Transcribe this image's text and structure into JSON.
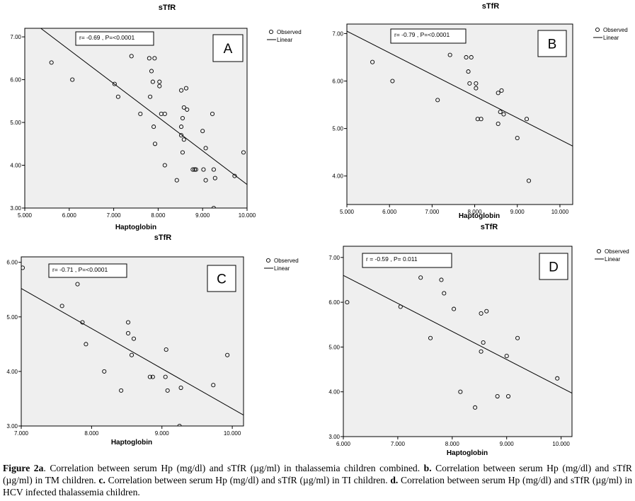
{
  "chart_data": [
    {
      "type": "scatter",
      "title": "sTfR",
      "xlabel": "Haptoglobin",
      "ylabel": "",
      "xlim": [
        5,
        10
      ],
      "ylim": [
        3,
        7.2
      ],
      "xticks": [
        "5.000",
        "6.000",
        "7.000",
        "8.000",
        "9.000",
        "10.000"
      ],
      "yticks": [
        "3.00",
        "4.00",
        "5.00",
        "6.00",
        "7.00"
      ],
      "legend": {
        "observed": "Observed",
        "linear": "Linear",
        "placement": "top-right"
      },
      "stats": "r= -0.69 ,  P=<0.0001",
      "panel_letter": "A",
      "fit_line": {
        "x": [
          5.36,
          10.0
        ],
        "y": [
          7.2,
          3.55
        ]
      },
      "points": [
        {
          "x": 5.6,
          "y": 6.4
        },
        {
          "x": 6.07,
          "y": 6.0
        },
        {
          "x": 7.02,
          "y": 5.9
        },
        {
          "x": 7.1,
          "y": 5.6
        },
        {
          "x": 7.4,
          "y": 6.55
        },
        {
          "x": 7.6,
          "y": 5.2
        },
        {
          "x": 7.8,
          "y": 6.5
        },
        {
          "x": 7.92,
          "y": 6.5
        },
        {
          "x": 7.85,
          "y": 6.2
        },
        {
          "x": 7.88,
          "y": 5.95
        },
        {
          "x": 7.82,
          "y": 5.6
        },
        {
          "x": 8.03,
          "y": 5.95
        },
        {
          "x": 8.03,
          "y": 5.85
        },
        {
          "x": 7.9,
          "y": 4.9
        },
        {
          "x": 7.93,
          "y": 4.5
        },
        {
          "x": 8.07,
          "y": 5.2
        },
        {
          "x": 8.15,
          "y": 5.2
        },
        {
          "x": 8.15,
          "y": 4.0
        },
        {
          "x": 8.42,
          "y": 3.65
        },
        {
          "x": 8.52,
          "y": 5.75
        },
        {
          "x": 8.63,
          "y": 5.8
        },
        {
          "x": 8.58,
          "y": 5.35
        },
        {
          "x": 8.65,
          "y": 5.3
        },
        {
          "x": 8.55,
          "y": 5.1
        },
        {
          "x": 8.52,
          "y": 4.9
        },
        {
          "x": 8.52,
          "y": 4.7
        },
        {
          "x": 8.58,
          "y": 4.6
        },
        {
          "x": 8.55,
          "y": 4.3
        },
        {
          "x": 8.78,
          "y": 3.9
        },
        {
          "x": 8.82,
          "y": 3.9
        },
        {
          "x": 8.85,
          "y": 3.9
        },
        {
          "x": 9.0,
          "y": 4.8
        },
        {
          "x": 9.07,
          "y": 4.4
        },
        {
          "x": 9.02,
          "y": 3.9
        },
        {
          "x": 9.07,
          "y": 3.65
        },
        {
          "x": 9.22,
          "y": 5.2
        },
        {
          "x": 9.25,
          "y": 3.9
        },
        {
          "x": 9.28,
          "y": 3.7
        },
        {
          "x": 9.25,
          "y": 3.0
        },
        {
          "x": 9.72,
          "y": 3.75
        },
        {
          "x": 9.92,
          "y": 4.3
        }
      ]
    },
    {
      "type": "scatter",
      "title": "sTfR",
      "xlabel": "Haptoglobin",
      "ylabel": "",
      "xlim": [
        5,
        10.3
      ],
      "ylim": [
        3.4,
        7.2
      ],
      "xticks": [
        "5.000",
        "6.000",
        "7.000",
        "8.000",
        "9.000",
        "10.000"
      ],
      "yticks": [
        "4.00",
        "5.00",
        "6.00",
        "7.00"
      ],
      "legend": {
        "observed": "Observed",
        "linear": "Linear",
        "placement": "top-right"
      },
      "stats": "r= -0.79 ,  P=<0.0001",
      "panel_letter": "B",
      "fit_line": {
        "x": [
          5.0,
          10.3
        ],
        "y": [
          7.05,
          4.63
        ]
      },
      "points": [
        {
          "x": 5.6,
          "y": 6.4
        },
        {
          "x": 6.07,
          "y": 6.0
        },
        {
          "x": 7.13,
          "y": 5.6
        },
        {
          "x": 7.42,
          "y": 6.55
        },
        {
          "x": 7.8,
          "y": 6.5
        },
        {
          "x": 7.92,
          "y": 6.5
        },
        {
          "x": 7.85,
          "y": 6.2
        },
        {
          "x": 7.88,
          "y": 5.95
        },
        {
          "x": 8.03,
          "y": 5.95
        },
        {
          "x": 8.03,
          "y": 5.85
        },
        {
          "x": 8.07,
          "y": 5.2
        },
        {
          "x": 8.15,
          "y": 5.2
        },
        {
          "x": 8.55,
          "y": 5.75
        },
        {
          "x": 8.63,
          "y": 5.8
        },
        {
          "x": 8.6,
          "y": 5.35
        },
        {
          "x": 8.68,
          "y": 5.3
        },
        {
          "x": 8.55,
          "y": 5.1
        },
        {
          "x": 9.0,
          "y": 4.8
        },
        {
          "x": 9.22,
          "y": 5.2
        },
        {
          "x": 9.27,
          "y": 3.9
        }
      ]
    },
    {
      "type": "scatter",
      "title": "sTfR",
      "xlabel": "Haptoglobin",
      "ylabel": "",
      "xlim": [
        7,
        10.16
      ],
      "ylim": [
        3,
        6.1
      ],
      "xticks": [
        "7.000",
        "8.000",
        "9.000",
        "10.000"
      ],
      "yticks": [
        "3.00",
        "4.00",
        "5.00",
        "6.00"
      ],
      "legend": {
        "observed": "Observed",
        "linear": "Linear",
        "placement": "top-right"
      },
      "stats": "r= -0.71 ,  P=<0.0001",
      "panel_letter": "C",
      "fit_line": {
        "x": [
          7.0,
          10.16
        ],
        "y": [
          5.52,
          3.2
        ]
      },
      "points": [
        {
          "x": 7.02,
          "y": 5.9
        },
        {
          "x": 7.8,
          "y": 5.6
        },
        {
          "x": 7.58,
          "y": 5.2
        },
        {
          "x": 7.87,
          "y": 4.9
        },
        {
          "x": 7.92,
          "y": 4.5
        },
        {
          "x": 8.18,
          "y": 4.0
        },
        {
          "x": 8.42,
          "y": 3.65
        },
        {
          "x": 8.52,
          "y": 4.9
        },
        {
          "x": 8.52,
          "y": 4.7
        },
        {
          "x": 8.6,
          "y": 4.6
        },
        {
          "x": 8.57,
          "y": 4.3
        },
        {
          "x": 8.83,
          "y": 3.9
        },
        {
          "x": 8.87,
          "y": 3.9
        },
        {
          "x": 9.06,
          "y": 4.4
        },
        {
          "x": 9.05,
          "y": 3.9
        },
        {
          "x": 9.08,
          "y": 3.65
        },
        {
          "x": 9.27,
          "y": 3.7
        },
        {
          "x": 9.25,
          "y": 3.0
        },
        {
          "x": 9.73,
          "y": 3.75
        },
        {
          "x": 9.93,
          "y": 4.3
        }
      ]
    },
    {
      "type": "scatter",
      "title": "sTfR",
      "xlabel": "Haptoglobin",
      "ylabel": "",
      "xlim": [
        6,
        10.2
      ],
      "ylim": [
        3,
        7.25
      ],
      "xticks": [
        "6.000",
        "7.000",
        "8.000",
        "9.000",
        "10.000"
      ],
      "yticks": [
        "3.00",
        "4.00",
        "5.00",
        "6.00",
        "7.00"
      ],
      "legend": {
        "observed": "Observed",
        "linear": "Linear",
        "placement": "top-right"
      },
      "stats": "r =  -0.59  , P= 0.011",
      "panel_letter": "D",
      "fit_line": {
        "x": [
          6.0,
          10.2
        ],
        "y": [
          6.6,
          3.97
        ]
      },
      "points": [
        {
          "x": 6.07,
          "y": 6.0
        },
        {
          "x": 7.05,
          "y": 5.9
        },
        {
          "x": 7.42,
          "y": 6.55
        },
        {
          "x": 7.6,
          "y": 5.2
        },
        {
          "x": 7.8,
          "y": 6.5
        },
        {
          "x": 7.85,
          "y": 6.2
        },
        {
          "x": 8.03,
          "y": 5.85
        },
        {
          "x": 8.15,
          "y": 4.0
        },
        {
          "x": 8.42,
          "y": 3.65
        },
        {
          "x": 8.53,
          "y": 5.75
        },
        {
          "x": 8.63,
          "y": 5.8
        },
        {
          "x": 8.57,
          "y": 5.1
        },
        {
          "x": 8.53,
          "y": 4.9
        },
        {
          "x": 8.83,
          "y": 3.9
        },
        {
          "x": 9.0,
          "y": 4.8
        },
        {
          "x": 9.03,
          "y": 3.9
        },
        {
          "x": 9.2,
          "y": 5.2
        },
        {
          "x": 9.93,
          "y": 4.3
        }
      ]
    }
  ],
  "caption": {
    "a_label": "Figure 2a",
    "a_text": ". Correlation between serum Hp (mg/dl) and sTfR (µg/ml) in thalassemia children combined. ",
    "b_label": "b.",
    "b_text": " Correlation between serum Hp (mg/dl) and sTfR (µg/ml) in TM children. ",
    "c_label": "c.",
    "c_text": " Correlation between serum Hp (mg/dl) and sTfR (µg/ml) in TI children. ",
    "d_label": "d.",
    "d_text": " Correlation between serum Hp (mg/dl) and sTfR (µg/ml) in HCV infected thalassemia children."
  },
  "colors": {
    "plot_bg": "#efefef",
    "ink": "#000000"
  }
}
